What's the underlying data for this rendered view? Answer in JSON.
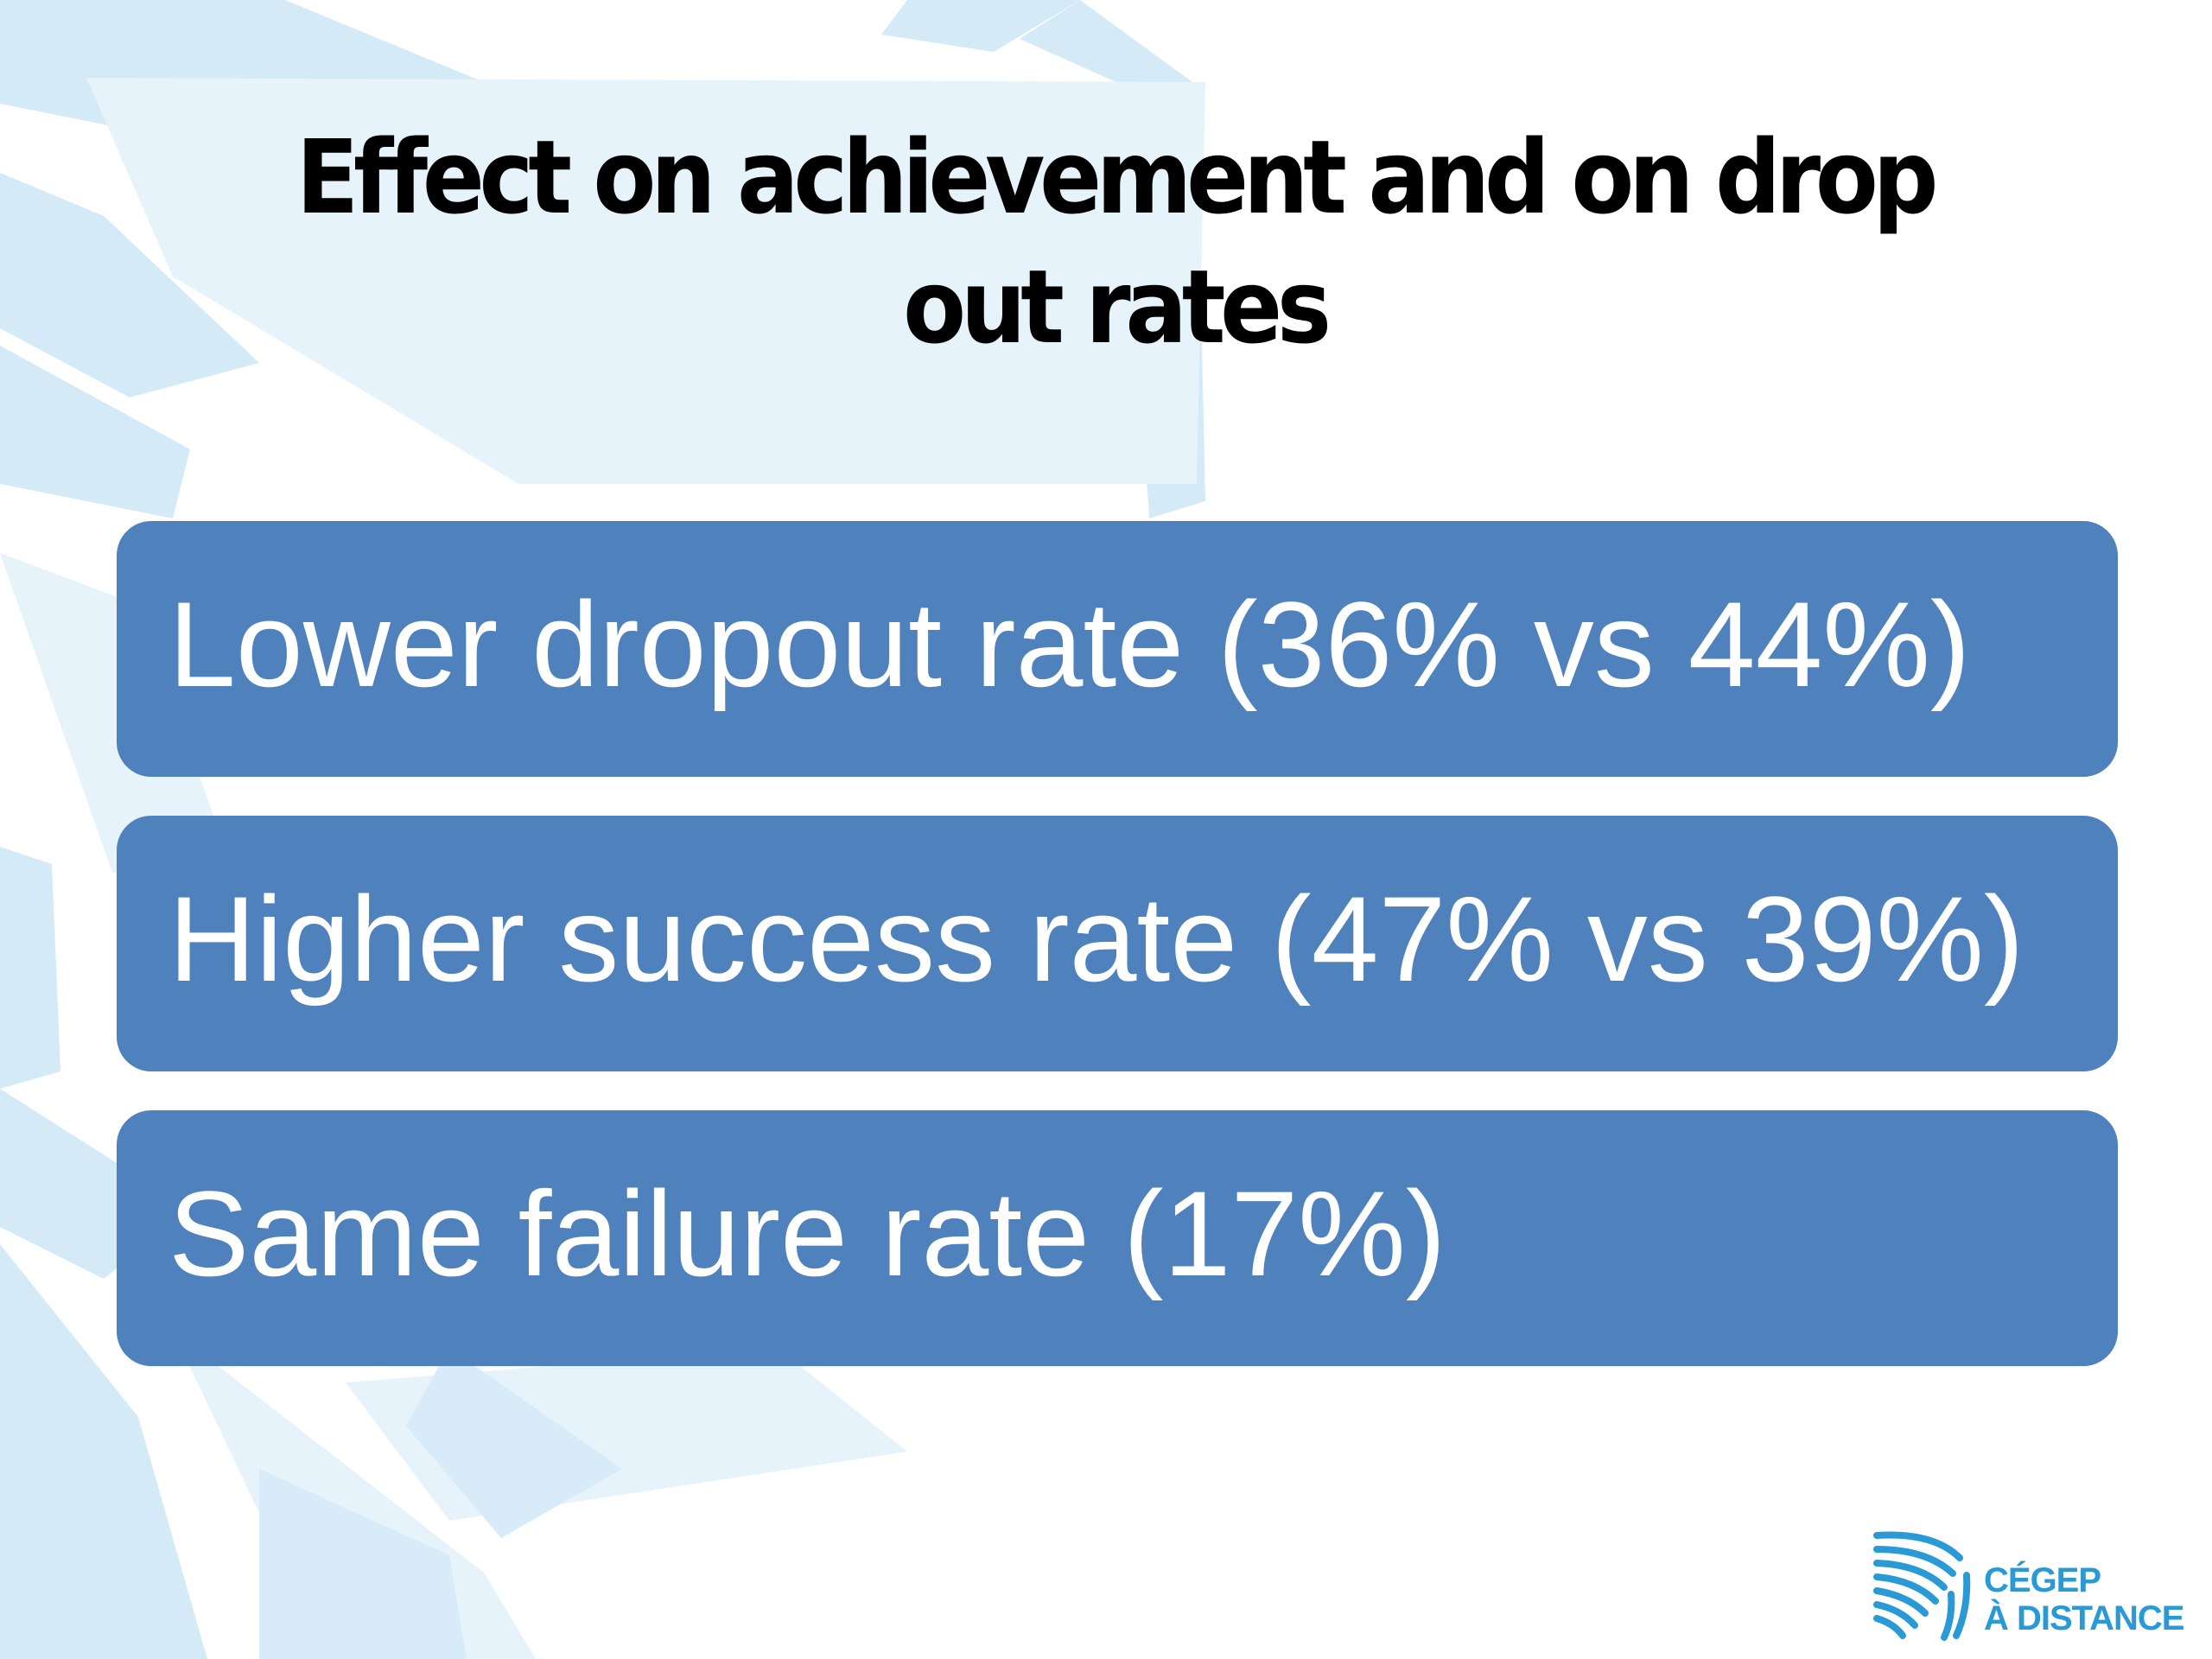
{
  "slide": {
    "title": "Effect on achievement and on drop out rates",
    "items": [
      {
        "text": "Lower dropout rate (36% vs 44%)"
      },
      {
        "text": "Higher success rate (47% vs 39%)"
      },
      {
        "text": "Same failure rate (17%)"
      }
    ],
    "logo": {
      "line1": "CÉGEP",
      "line2": "À DISTANCE",
      "mark_icon": "waves-icon"
    }
  },
  "colors": {
    "box_fill": "#4f81bd",
    "box_text": "#ffffff",
    "title_text": "#000000",
    "logo_blue": "#2a9ad6",
    "background_decor": "#cfe8f6"
  }
}
